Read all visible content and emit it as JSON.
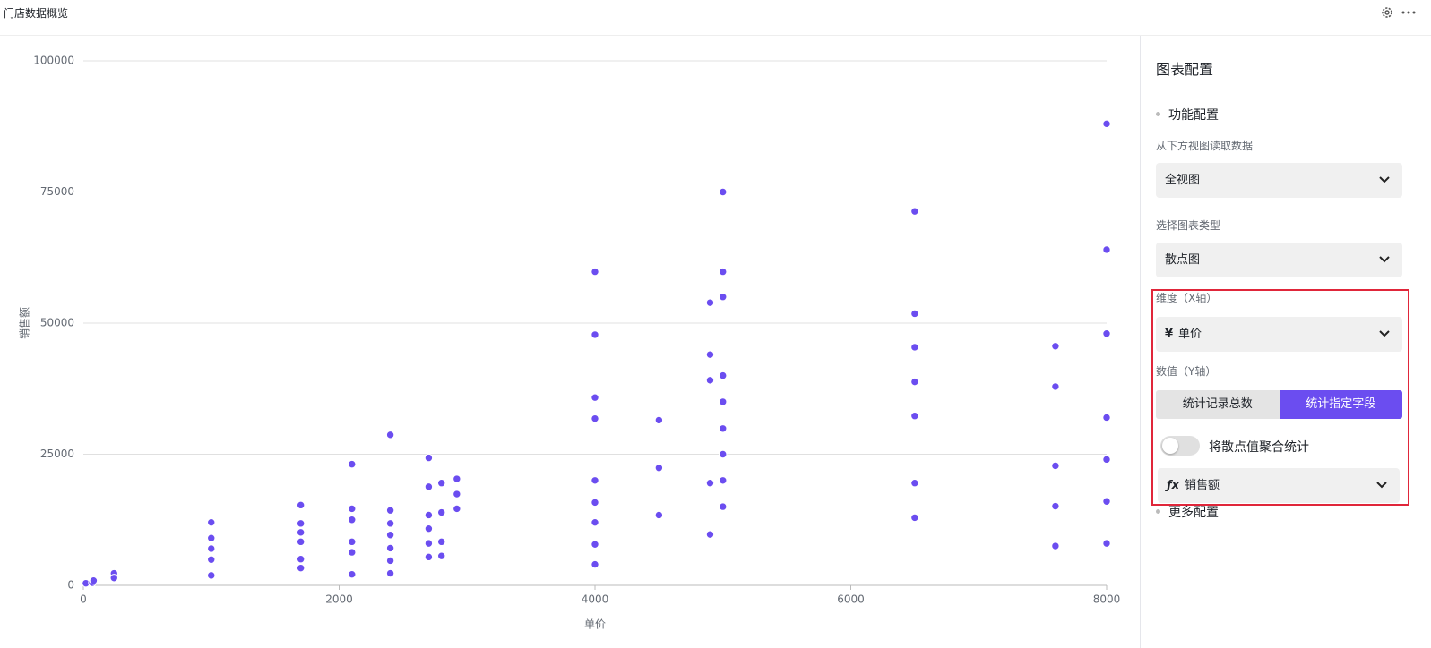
{
  "header": {
    "title": "门店数据概览"
  },
  "chart_data": {
    "type": "scatter",
    "xlabel": "单价",
    "ylabel": "销售额",
    "color": "#6b4df0",
    "grid": true,
    "xlim": [
      0,
      8000
    ],
    "ylim": [
      0,
      100000
    ],
    "xticks": [
      0,
      2000,
      4000,
      6000,
      8000
    ],
    "yticks": [
      0,
      25000,
      50000,
      75000,
      100000
    ],
    "x": [
      20,
      70,
      80,
      240,
      240,
      1000,
      1000,
      1000,
      1000,
      1000,
      1700,
      1700,
      1700,
      1700,
      1700,
      1700,
      2100,
      2100,
      2100,
      2100,
      2100,
      2100,
      2400,
      2400,
      2400,
      2400,
      2400,
      2400,
      2400,
      2700,
      2700,
      2700,
      2700,
      2700,
      2700,
      2800,
      2800,
      2800,
      2800,
      2920,
      2920,
      2920,
      4000,
      4000,
      4000,
      4000,
      4000,
      4000,
      4000,
      4000,
      4000,
      4500,
      4500,
      4500,
      4900,
      4900,
      4900,
      4900,
      4900,
      5000,
      5000,
      5000,
      5000,
      5000,
      5000,
      5000,
      5000,
      5000,
      6500,
      6500,
      6500,
      6500,
      6500,
      6500,
      6500,
      7600,
      7600,
      7600,
      7600,
      7600,
      8000,
      8000,
      8000,
      8000,
      8000,
      8000,
      8000
    ],
    "values": [
      400,
      500,
      900,
      2300,
      1400,
      12000,
      9000,
      7000,
      4900,
      1900,
      15300,
      11800,
      10100,
      8300,
      5000,
      3300,
      23100,
      14600,
      12500,
      8300,
      6300,
      2100,
      28700,
      14300,
      11800,
      9600,
      7100,
      4700,
      2300,
      24300,
      18800,
      13400,
      10800,
      8000,
      5400,
      19500,
      13900,
      8300,
      5600,
      20300,
      17400,
      14600,
      59800,
      47800,
      35800,
      31800,
      20000,
      15800,
      12000,
      7800,
      4000,
      31500,
      22400,
      13400,
      53900,
      44000,
      39100,
      19500,
      9700,
      75000,
      59800,
      55000,
      40000,
      35000,
      29900,
      25000,
      20000,
      15000,
      71300,
      51800,
      45400,
      38800,
      32300,
      19500,
      12900,
      45600,
      37900,
      22800,
      15100,
      7500,
      88000,
      64000,
      48000,
      32000,
      24000,
      16000,
      8000
    ]
  },
  "panel": {
    "title": "图表配置",
    "section1": "功能配置",
    "source_label": "从下方视图读取数据",
    "source_value": "全视图",
    "type_label": "选择图表类型",
    "type_value": "散点图",
    "x_label": "维度（X轴）",
    "x_icon": "¥",
    "x_value": "单价",
    "y_label": "数值（Y轴）",
    "y_options": [
      "统计记录总数",
      "统计指定字段"
    ],
    "aggregate_label": "将散点值聚合统计",
    "field_icon": "ƒx",
    "field_value": "销售额",
    "section2": "更多配置"
  }
}
